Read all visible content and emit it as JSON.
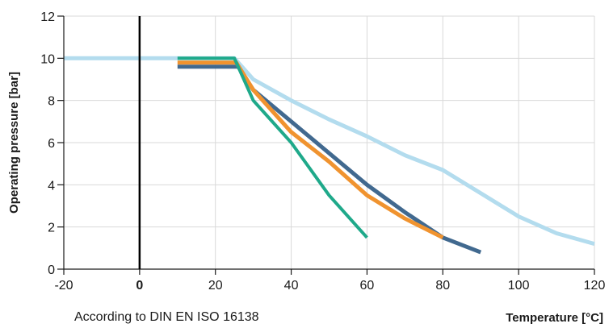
{
  "chart_data": {
    "type": "line",
    "title": "",
    "xlabel": "Temperature [°C]",
    "ylabel": "Operating pressure [bar]",
    "note": "According to DIN EN ISO 16138",
    "xlim": [
      -20,
      120
    ],
    "ylim": [
      0,
      12
    ],
    "x_ticks": [
      {
        "value": -20,
        "label": "-20",
        "bold": false
      },
      {
        "value": 0,
        "label": "0",
        "bold": true
      },
      {
        "value": 20,
        "label": "20",
        "bold": false
      },
      {
        "value": 40,
        "label": "40",
        "bold": false
      },
      {
        "value": 60,
        "label": "60",
        "bold": false
      },
      {
        "value": 80,
        "label": "80",
        "bold": false
      },
      {
        "value": 100,
        "label": "100",
        "bold": false
      },
      {
        "value": 120,
        "label": "120",
        "bold": false
      }
    ],
    "y_ticks": [
      {
        "value": 0,
        "label": "0"
      },
      {
        "value": 2,
        "label": "2"
      },
      {
        "value": 4,
        "label": "4"
      },
      {
        "value": 6,
        "label": "6"
      },
      {
        "value": 8,
        "label": "8"
      },
      {
        "value": 10,
        "label": "10"
      },
      {
        "value": 12,
        "label": "12"
      }
    ],
    "x_grid": [
      -20,
      0,
      20,
      40,
      60,
      80,
      100,
      120
    ],
    "y_grid": [
      2,
      4,
      6,
      8,
      10,
      12
    ],
    "grid": true,
    "series": [
      {
        "color": "#b3dcee",
        "points": [
          [
            -20,
            10
          ],
          [
            25,
            10
          ],
          [
            30,
            9
          ],
          [
            40,
            8
          ],
          [
            50,
            7.1
          ],
          [
            60,
            6.3
          ],
          [
            70,
            5.4
          ],
          [
            80,
            4.7
          ],
          [
            90,
            3.6
          ],
          [
            100,
            2.5
          ],
          [
            110,
            1.7
          ],
          [
            120,
            1.2
          ]
        ]
      },
      {
        "color": "#41698f",
        "points": [
          [
            10,
            9.6
          ],
          [
            26,
            9.6
          ],
          [
            30,
            8.5
          ],
          [
            40,
            7
          ],
          [
            50,
            5.5
          ],
          [
            60,
            4
          ],
          [
            70,
            2.7
          ],
          [
            80,
            1.5
          ],
          [
            90,
            0.8
          ]
        ]
      },
      {
        "color": "#f0932f",
        "points": [
          [
            10,
            9.8
          ],
          [
            25.5,
            9.8
          ],
          [
            30,
            8.5
          ],
          [
            40,
            6.5
          ],
          [
            50,
            5.1
          ],
          [
            60,
            3.5
          ],
          [
            70,
            2.4
          ],
          [
            80,
            1.5
          ]
        ]
      },
      {
        "color": "#1fa98a",
        "points": [
          [
            10,
            10
          ],
          [
            25,
            10
          ],
          [
            30,
            8
          ],
          [
            40,
            6
          ],
          [
            50,
            3.5
          ],
          [
            60,
            1.5
          ]
        ]
      }
    ]
  }
}
